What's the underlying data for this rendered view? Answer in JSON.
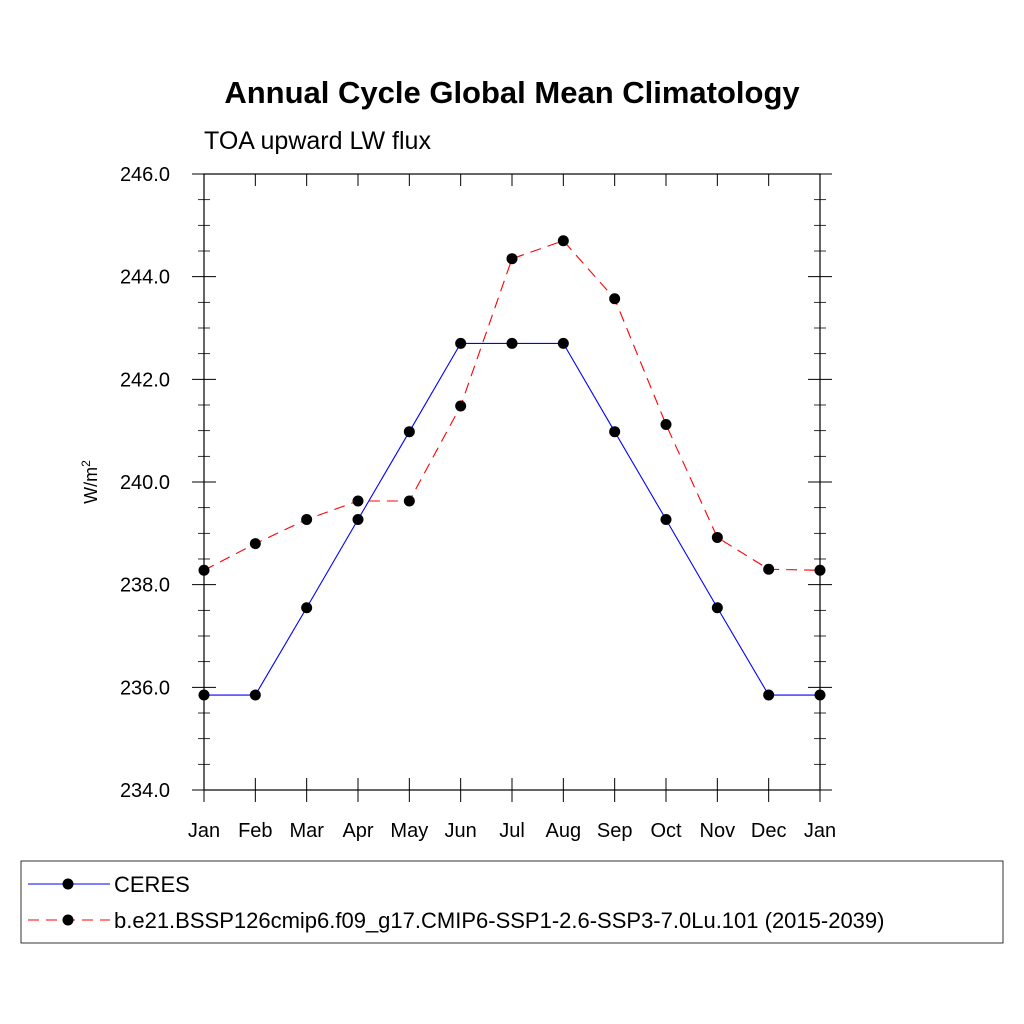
{
  "chart_data": {
    "type": "line",
    "title": "Annual Cycle Global Mean Climatology",
    "subtitle": "TOA upward LW flux",
    "ylabel_main": "W/m",
    "ylabel_sup": "2",
    "categories": [
      "Jan",
      "Feb",
      "Mar",
      "Apr",
      "May",
      "Jun",
      "Jul",
      "Aug",
      "Sep",
      "Oct",
      "Nov",
      "Dec",
      "Jan"
    ],
    "ylim": [
      234.0,
      246.0
    ],
    "yticks": [
      "234.0",
      "236.0",
      "238.0",
      "240.0",
      "242.0",
      "244.0",
      "246.0"
    ],
    "grid": false,
    "legend_position": "bottom",
    "series": [
      {
        "name": "CERES",
        "color": "#0000ff",
        "dash": "solid",
        "values": [
          235.85,
          235.85,
          237.55,
          239.27,
          240.98,
          242.7,
          242.7,
          242.7,
          240.98,
          239.27,
          237.55,
          235.85,
          235.85
        ]
      },
      {
        "name": "b.e21.BSSP126cmip6.f09_g17.CMIP6-SSP1-2.6-SSP3-7.0Lu.101 (2015-2039)",
        "color": "#ff0000",
        "dash": "dashed",
        "values": [
          238.28,
          238.8,
          239.27,
          239.63,
          239.63,
          241.48,
          244.35,
          244.7,
          243.57,
          241.12,
          238.92,
          238.3,
          238.28
        ]
      }
    ]
  }
}
